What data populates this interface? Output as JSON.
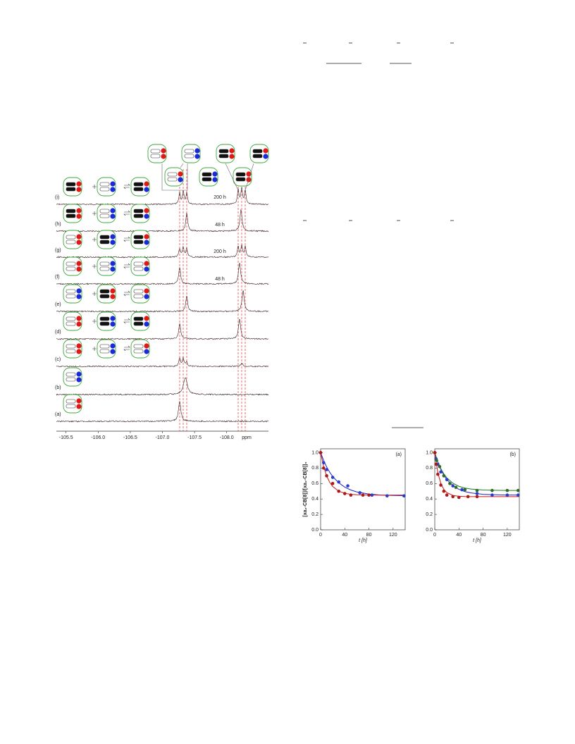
{
  "nmr_figure": {
    "spectrum_labels": [
      "(i)",
      "(h)",
      "(g)",
      "(f)",
      "(e)",
      "(d)",
      "(c)",
      "(b)",
      "(a)"
    ],
    "time_labels": [
      "200 h",
      "48 h",
      "200 h",
      "48 h"
    ],
    "xlim": [
      -105.35,
      -108.65
    ],
    "xticks": [
      -105.5,
      {
        "value": -106,
        "label": "-106.0"
      },
      -106.5,
      {
        "value": -107,
        "label": "-107.0"
      },
      -107.5,
      {
        "value": -108,
        "label": "-108.0"
      }
    ],
    "xlabel": "ppm"
  },
  "chart_data": [
    {
      "type": "scatter",
      "panel_label": "(a)",
      "ylabel": "[xa₂-CB[8]]/[xa₂-CB[8]]₀",
      "xlabel": "t [h]",
      "xlim": [
        0,
        140
      ],
      "xticks": [
        0,
        40,
        80,
        120
      ],
      "ylim": [
        0,
        1.05
      ],
      "yticks": [
        {
          "value": 0,
          "label": "0.0"
        },
        0.2,
        0.4,
        0.6,
        0.8,
        {
          "value": 1,
          "label": "1.0"
        }
      ],
      "series": [
        {
          "mode": "line",
          "color": "#1f1fd0",
          "x": [
            0,
            5,
            10,
            15,
            20,
            30,
            40,
            50,
            60,
            80,
            100,
            120,
            140
          ],
          "values": [
            1.0,
            0.899,
            0.815,
            0.747,
            0.691,
            0.609,
            0.553,
            0.516,
            0.491,
            0.463,
            0.45,
            0.445,
            0.442
          ]
        },
        {
          "mode": "line",
          "color": "#c81414",
          "x": [
            0,
            5,
            10,
            15,
            20,
            30,
            40,
            50,
            60,
            80,
            100,
            120,
            140
          ],
          "values": [
            1.0,
            0.819,
            0.697,
            0.616,
            0.561,
            0.5,
            0.473,
            0.46,
            0.454,
            0.451,
            0.45,
            0.45,
            0.45
          ]
        },
        {
          "mode": "markers",
          "color": "#2a3ccc",
          "x": [
            0,
            5,
            10,
            20,
            30,
            45,
            65,
            85,
            110,
            138
          ],
          "values": [
            1.0,
            0.87,
            0.78,
            0.68,
            0.62,
            0.57,
            0.48,
            0.45,
            0.44,
            0.44
          ]
        },
        {
          "mode": "markers",
          "color": "#b01818",
          "x": [
            0,
            5,
            10,
            20,
            30,
            40,
            50,
            70,
            80
          ],
          "values": [
            1.0,
            0.8,
            0.7,
            0.6,
            0.5,
            0.47,
            0.45,
            0.45,
            0.45
          ]
        }
      ]
    },
    {
      "type": "scatter",
      "panel_label": "(b)",
      "xlabel": "t [h]",
      "xlim": [
        0,
        140
      ],
      "xticks": [
        0,
        40,
        80,
        120
      ],
      "ylim": [
        0,
        1.05
      ],
      "yticks": [
        {
          "value": 0,
          "label": "0.0"
        },
        0.2,
        0.4,
        0.6,
        0.8,
        {
          "value": 1,
          "label": "1.0"
        }
      ],
      "series": [
        {
          "mode": "line",
          "color": "#1f1fd0",
          "x": [
            0,
            5,
            10,
            15,
            20,
            30,
            40,
            50,
            60,
            80,
            100,
            120,
            140
          ],
          "values": [
            1.0,
            0.878,
            0.784,
            0.71,
            0.652,
            0.573,
            0.524,
            0.495,
            0.478,
            0.46,
            0.454,
            0.451,
            0.451
          ]
        },
        {
          "mode": "line",
          "color": "#1e7a1e",
          "x": [
            0,
            5,
            10,
            15,
            20,
            30,
            40,
            50,
            60,
            80,
            100,
            120,
            140
          ],
          "values": [
            1.0,
            0.882,
            0.793,
            0.725,
            0.673,
            0.604,
            0.564,
            0.541,
            0.528,
            0.516,
            0.512,
            0.51,
            0.51
          ]
        },
        {
          "mode": "line",
          "color": "#d01414",
          "x": [
            0,
            5,
            10,
            15,
            20,
            30,
            40,
            50,
            60,
            80,
            100,
            120,
            140
          ],
          "values": [
            1.0,
            0.743,
            0.602,
            0.524,
            0.482,
            0.445,
            0.435,
            0.431,
            0.43,
            0.43,
            0.43,
            0.43,
            0.43
          ]
        },
        {
          "mode": "markers",
          "color": "#2a3ccc",
          "x": [
            0,
            2,
            5,
            10,
            20,
            30,
            45,
            70,
            95,
            120,
            138
          ],
          "values": [
            1.0,
            0.92,
            0.85,
            0.75,
            0.65,
            0.57,
            0.52,
            0.47,
            0.45,
            0.45,
            0.45
          ]
        },
        {
          "mode": "markers",
          "color": "#2e6a2e",
          "x": [
            0,
            3,
            8,
            15,
            25,
            35,
            50,
            70,
            95,
            120,
            138
          ],
          "values": [
            1.0,
            0.9,
            0.82,
            0.7,
            0.6,
            0.55,
            0.52,
            0.51,
            0.51,
            0.51,
            0.51
          ]
        },
        {
          "mode": "markers",
          "color": "#b01818",
          "x": [
            0,
            2,
            5,
            10,
            15,
            20,
            30,
            40,
            55,
            70
          ],
          "values": [
            1.0,
            0.85,
            0.72,
            0.58,
            0.5,
            0.45,
            0.43,
            0.42,
            0.43,
            0.43
          ]
        }
      ]
    }
  ]
}
